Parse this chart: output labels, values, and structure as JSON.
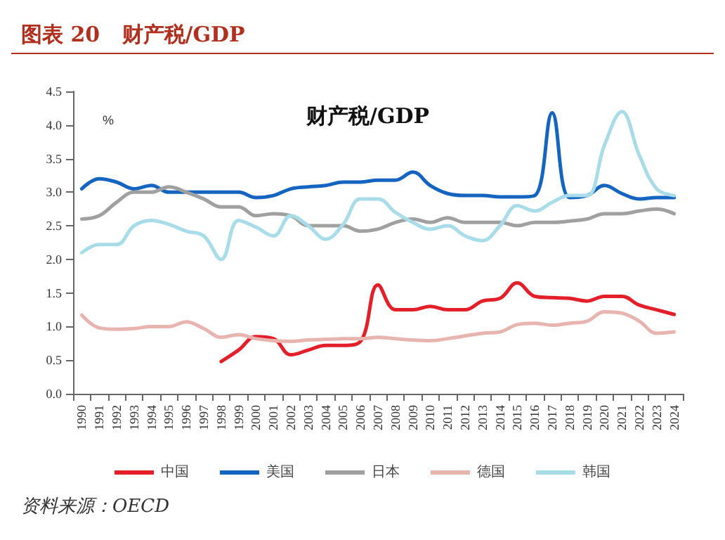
{
  "chart_data": {
    "type": "line",
    "title": "图表 20   财产税/GDP",
    "subtitle": "财产税/GDP",
    "ylabel": "%",
    "categories": [
      "1990",
      "1991",
      "1992",
      "1993",
      "1994",
      "1995",
      "1996",
      "1997",
      "1998",
      "1999",
      "2000",
      "2001",
      "2002",
      "2003",
      "2004",
      "2005",
      "2006",
      "2007",
      "2008",
      "2009",
      "2010",
      "2011",
      "2012",
      "2013",
      "2014",
      "2015",
      "2016",
      "2017",
      "2018",
      "2019",
      "2020",
      "2021",
      "2022",
      "2023",
      "2024"
    ],
    "series": [
      {
        "name": "中国",
        "color": "#e3202a",
        "values": [
          null,
          null,
          null,
          null,
          null,
          null,
          null,
          null,
          0.48,
          0.65,
          0.85,
          0.82,
          0.58,
          0.65,
          0.72,
          0.72,
          0.78,
          1.62,
          1.25,
          1.25,
          1.3,
          1.25,
          1.25,
          1.38,
          1.42,
          1.65,
          1.45,
          1.43,
          1.42,
          1.38,
          1.45,
          1.45,
          1.32,
          1.25,
          1.18
        ]
      },
      {
        "name": "美国",
        "color": "#1565c0",
        "values": [
          3.05,
          3.2,
          3.15,
          3.05,
          3.1,
          3.0,
          3.0,
          3.0,
          3.0,
          3.0,
          2.92,
          2.95,
          3.05,
          3.08,
          3.1,
          3.15,
          3.15,
          3.18,
          3.18,
          3.3,
          3.1,
          2.98,
          2.95,
          2.95,
          2.93,
          2.93,
          2.95,
          4.18,
          2.92,
          2.95,
          3.1,
          2.98,
          2.9,
          2.92,
          2.92
        ]
      },
      {
        "name": "日本",
        "color": "#a0a0a0",
        "values": [
          2.6,
          2.65,
          2.85,
          3.0,
          3.0,
          3.08,
          3.0,
          2.9,
          2.78,
          2.78,
          2.65,
          2.68,
          2.65,
          2.5,
          2.5,
          2.5,
          2.42,
          2.45,
          2.55,
          2.6,
          2.55,
          2.62,
          2.55,
          2.55,
          2.55,
          2.5,
          2.55,
          2.55,
          2.57,
          2.6,
          2.68,
          2.68,
          2.72,
          2.75,
          2.68
        ]
      },
      {
        "name": "德国",
        "color": "#e8b4b0",
        "values": [
          1.17,
          0.98,
          0.96,
          0.97,
          1.0,
          1.0,
          1.07,
          0.97,
          0.84,
          0.88,
          0.82,
          0.79,
          0.78,
          0.8,
          0.81,
          0.82,
          0.82,
          0.84,
          0.82,
          0.8,
          0.79,
          0.82,
          0.86,
          0.9,
          0.92,
          1.03,
          1.05,
          1.02,
          1.05,
          1.08,
          1.22,
          1.2,
          1.08,
          0.9,
          0.92
        ]
      },
      {
        "name": "韩国",
        "color": "#a8dce8",
        "values": [
          2.1,
          2.22,
          2.22,
          2.5,
          2.58,
          2.52,
          2.42,
          2.35,
          2.0,
          2.58,
          2.48,
          2.35,
          2.65,
          2.5,
          2.3,
          2.52,
          2.9,
          2.9,
          2.7,
          2.55,
          2.45,
          2.5,
          2.35,
          2.28,
          2.5,
          2.8,
          2.72,
          2.85,
          2.95,
          2.95,
          3.7,
          4.2,
          3.55,
          3.05,
          2.95
        ]
      }
    ],
    "ylim": [
      0,
      4.5
    ],
    "yticks": [
      {
        "value": 0,
        "label": "0.0"
      },
      {
        "value": 0.5,
        "label": "0.5"
      },
      {
        "value": 1,
        "label": "1.0"
      },
      {
        "value": 1.5,
        "label": "1.5"
      },
      {
        "value": 2,
        "label": "2.0"
      },
      {
        "value": 2.5,
        "label": "2.5"
      },
      {
        "value": 3,
        "label": "3.0"
      },
      {
        "value": 3.5,
        "label": "3.5"
      },
      {
        "value": 4,
        "label": "4.0"
      },
      {
        "value": 4.5,
        "label": "4.5"
      }
    ],
    "grid": false,
    "legend": "bottom",
    "marker": "none",
    "line_style": "solid",
    "annotations": [
      "资料来源：OECD"
    ]
  }
}
